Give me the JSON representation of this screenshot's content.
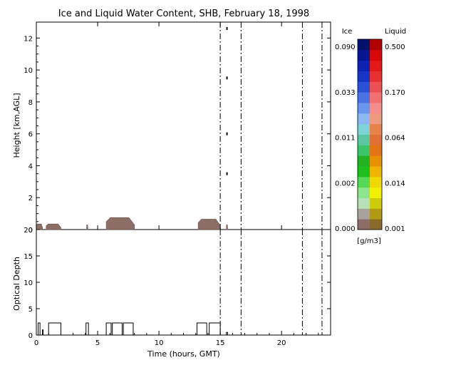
{
  "title": "Ice and Liquid Water Content, SHB, February 18, 1998",
  "colors": {
    "ice_scale": [
      "#8c6e67",
      "#a8a29c",
      "#b7e0b7",
      "#8ee58e",
      "#56d956",
      "#1ec01e",
      "#22b222",
      "#3bc46a",
      "#5cc8a2",
      "#7fd2d6",
      "#8cb8f2",
      "#6a96f0",
      "#4a72e4",
      "#2a50d6",
      "#1834c4",
      "#0c22b0",
      "#061690",
      "#03106c"
    ],
    "liquid_scale": [
      "#8a6a28",
      "#b09a14",
      "#cccc0a",
      "#f0f000",
      "#f0d800",
      "#f0b400",
      "#e89000",
      "#e27414",
      "#e07036",
      "#e6824a",
      "#ee9a80",
      "#f48e8e",
      "#f27070",
      "#ec5050",
      "#e83030",
      "#e41818",
      "#d80808",
      "#b00000"
    ],
    "trace": "#000000",
    "dashed_lines": "#000000"
  },
  "legend": {
    "ice_label": "Ice",
    "liquid_label": "Liquid",
    "ice_ticks": [
      "0.090",
      "0.033",
      "0.011",
      "0.002",
      "0.000"
    ],
    "liquid_ticks": [
      "0.500",
      "0.170",
      "0.064",
      "0.014",
      "0.001"
    ],
    "units": "[g/m3]"
  },
  "chart_data": [
    {
      "type": "heatmap",
      "title": "Ice and Liquid Water Content, SHB, February 18, 1998",
      "ylabel": "Height [km,AGL]",
      "xlim": [
        0,
        24
      ],
      "ylim": [
        0,
        13
      ],
      "yticks": [
        "0",
        "2",
        "4",
        "6",
        "8",
        "10",
        "12"
      ],
      "xticks": [
        "0",
        "5",
        "10",
        "15",
        "20"
      ],
      "vertical_dashed_lines_hours": [
        15.0,
        16.7,
        21.7,
        23.3
      ],
      "cloud_patches": [
        {
          "start_hour": 0.0,
          "end_hour": 0.5,
          "base_km": 0.0,
          "top_km": 0.35
        },
        {
          "start_hour": 0.8,
          "end_hour": 2.0,
          "base_km": 0.0,
          "top_km": 0.35
        },
        {
          "start_hour": 4.1,
          "end_hour": 4.2,
          "base_km": 0.0,
          "top_km": 0.3
        },
        {
          "start_hour": 5.7,
          "end_hour": 8.0,
          "base_km": 0.0,
          "top_km": 0.75
        },
        {
          "start_hour": 13.2,
          "end_hour": 15.0,
          "base_km": 0.0,
          "top_km": 0.65
        },
        {
          "start_hour": 15.5,
          "end_hour": 15.6,
          "base_km": 0.0,
          "top_km": 0.3
        }
      ],
      "isolated_points": [
        {
          "hour": 15.55,
          "height_km": 12.6
        },
        {
          "hour": 15.55,
          "height_km": 9.5
        },
        {
          "hour": 15.55,
          "height_km": 6.0
        },
        {
          "hour": 15.55,
          "height_km": 3.5
        }
      ]
    },
    {
      "type": "line",
      "xlabel": "Time (hours, GMT)",
      "ylabel": "Optical Depth",
      "xlim": [
        0,
        24
      ],
      "ylim": [
        0,
        20
      ],
      "yticks": [
        "0",
        "5",
        "10",
        "15",
        "20"
      ],
      "xticks": [
        "0",
        "5",
        "10",
        "15",
        "20"
      ],
      "vertical_dashed_lines_hours": [
        15.0,
        16.7,
        21.7,
        23.3
      ],
      "x": [
        0.0,
        0.15,
        0.15,
        0.3,
        0.3,
        0.5,
        0.5,
        0.55,
        0.55,
        1.0,
        1.0,
        2.0,
        2.0,
        4.05,
        4.05,
        4.25,
        4.25,
        5.7,
        5.7,
        6.1,
        6.1,
        6.2,
        6.2,
        7.0,
        7.0,
        7.1,
        7.1,
        7.9,
        7.9,
        13.1,
        13.1,
        13.9,
        13.9,
        14.1,
        14.1,
        15.0,
        15.0,
        15.5,
        15.5,
        15.6,
        15.6,
        24.0
      ],
      "y": [
        0,
        0,
        2.3,
        2.3,
        0,
        0,
        1.0,
        1.0,
        0,
        0,
        2.3,
        2.3,
        0,
        0,
        2.3,
        2.3,
        0,
        0,
        2.3,
        2.3,
        0,
        0,
        2.3,
        2.3,
        0,
        0,
        2.3,
        2.3,
        0,
        0,
        2.3,
        2.3,
        0,
        0,
        2.3,
        2.3,
        0,
        0,
        0.5,
        0.5,
        0,
        0
      ]
    }
  ]
}
